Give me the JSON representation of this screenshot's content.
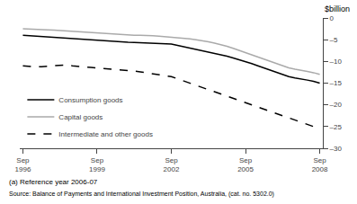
{
  "chart_data": {
    "type": "line",
    "ylabel": "$billion",
    "categories": [
      "Sep\n1996",
      null,
      null,
      null,
      null,
      null,
      null,
      null,
      null,
      null,
      null,
      null,
      "Sep\n1999",
      null,
      null,
      null,
      null,
      null,
      null,
      null,
      null,
      null,
      null,
      null,
      "Sep\n2002",
      null,
      null,
      null,
      null,
      null,
      null,
      null,
      null,
      null,
      null,
      null,
      "Sep\n2005",
      null,
      null,
      null,
      null,
      null,
      null,
      null,
      null,
      null,
      null,
      null,
      "Sep\n2008"
    ],
    "series": [
      {
        "name": "Consumption goods",
        "color": "#000000",
        "line_style": "solid",
        "values": [
          -4.0,
          -4.1,
          -4.2,
          -4.25,
          -4.3,
          -4.4,
          -4.5,
          -4.6,
          -4.7,
          -4.8,
          -4.9,
          -5.0,
          -5.1,
          -5.2,
          -5.3,
          -5.4,
          -5.5,
          -5.6,
          -5.65,
          -5.7,
          -5.75,
          -5.8,
          -5.85,
          -5.9,
          -6.0,
          -6.3,
          -6.6,
          -6.9,
          -7.2,
          -7.5,
          -7.8,
          -8.1,
          -8.4,
          -8.8,
          -9.2,
          -9.6,
          -10.0,
          -10.5,
          -11.0,
          -11.5,
          -12.0,
          -12.5,
          -13.0,
          -13.5,
          -13.8,
          -14.0,
          -14.3,
          -14.6,
          -15.0
        ]
      },
      {
        "name": "Capital goods",
        "color": "#aaaaaa",
        "line_style": "solid",
        "values": [
          -2.5,
          -2.6,
          -2.65,
          -2.7,
          -2.75,
          -2.8,
          -2.9,
          -3.0,
          -3.1,
          -3.2,
          -3.3,
          -3.4,
          -3.5,
          -3.6,
          -3.7,
          -3.75,
          -3.8,
          -3.9,
          -4.0,
          -4.0,
          -4.0,
          -4.1,
          -4.2,
          -4.3,
          -4.4,
          -4.5,
          -4.6,
          -4.8,
          -5.0,
          -5.2,
          -5.5,
          -5.8,
          -6.1,
          -6.5,
          -7.0,
          -7.5,
          -8.0,
          -8.5,
          -9.0,
          -9.5,
          -10.0,
          -10.5,
          -11.0,
          -11.5,
          -11.8,
          -12.0,
          -12.3,
          -12.6,
          -13.0
        ]
      },
      {
        "name": "Intermediate and other goods",
        "color": "#000000",
        "line_style": "dashed",
        "values": [
          -11.0,
          -11.2,
          -11.3,
          -11.2,
          -11.1,
          -11.0,
          -10.9,
          -10.8,
          -11.0,
          -11.2,
          -11.3,
          -11.4,
          -11.5,
          -11.6,
          -11.7,
          -11.8,
          -11.9,
          -12.0,
          -12.2,
          -12.4,
          -12.6,
          -12.8,
          -13.0,
          -13.2,
          -13.5,
          -14.0,
          -14.5,
          -15.0,
          -15.5,
          -16.0,
          -16.5,
          -17.0,
          -17.5,
          -18.0,
          -18.5,
          -19.0,
          -19.5,
          -20.0,
          -20.5,
          -21.0,
          -21.5,
          -22.0,
          -22.5,
          -23.0,
          -23.5,
          -24.0,
          -24.5,
          -25.0,
          -25.5
        ]
      }
    ],
    "ylim": [
      -30,
      0
    ],
    "yticks": [
      0,
      {
        "value": -5,
        "label": "–5"
      },
      {
        "value": -10,
        "label": "–10"
      },
      {
        "value": -15,
        "label": "–15"
      },
      {
        "value": -20,
        "label": "–20"
      },
      {
        "value": -25,
        "label": "–25"
      },
      {
        "value": -30,
        "label": "–30"
      }
    ],
    "grid": false,
    "legend": "lower left",
    "annotations": [
      "(a) Reference year 2006-07",
      "Source: Balance of Payments and International Investment Position, Australia, (cat. no. 5302.0)"
    ]
  }
}
